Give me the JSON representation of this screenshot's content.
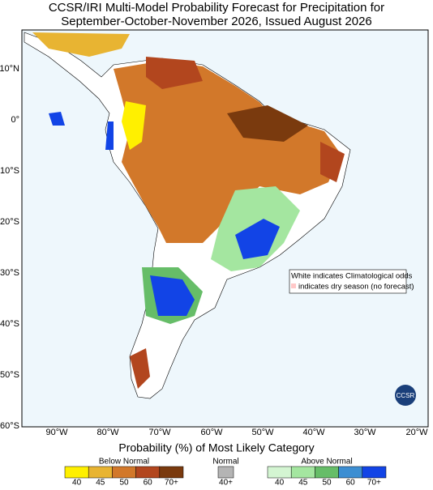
{
  "title": [
    "CCSR/IRI Multi-Model Probability Forecast for Precipitation for",
    "September-October-November 2026, Issued August 2026"
  ],
  "map": {
    "lon_labels": [
      "90°W",
      "80°W",
      "70°W",
      "60°W",
      "50°W",
      "40°W",
      "30°W",
      "20°W"
    ],
    "lat_labels": [
      "10°N",
      "0°",
      "10°S",
      "20°S",
      "30°S",
      "40°S",
      "50°S",
      "60°S"
    ],
    "notes": [
      "White indicates Climatological odds",
      "indicates dry season (no forecast)"
    ],
    "logo": "CCSR"
  },
  "legend": {
    "title": "Probability (%) of Most Likely Category",
    "groups": [
      {
        "name": "Below Normal",
        "labels": [
          "40",
          "45",
          "50",
          "60",
          "70+"
        ],
        "colors": [
          "#fff000",
          "#e8b432",
          "#d2782a",
          "#b2461e",
          "#7a3a0e"
        ]
      },
      {
        "name": "Normal",
        "labels": [
          "40+"
        ],
        "colors": [
          "#b4b4b4"
        ]
      },
      {
        "name": "Above Normal",
        "labels": [
          "40",
          "45",
          "50",
          "60",
          "70+"
        ],
        "colors": [
          "#d4f5d2",
          "#a4e6a0",
          "#66bd68",
          "#3c8ed2",
          "#1244e6"
        ]
      }
    ]
  }
}
